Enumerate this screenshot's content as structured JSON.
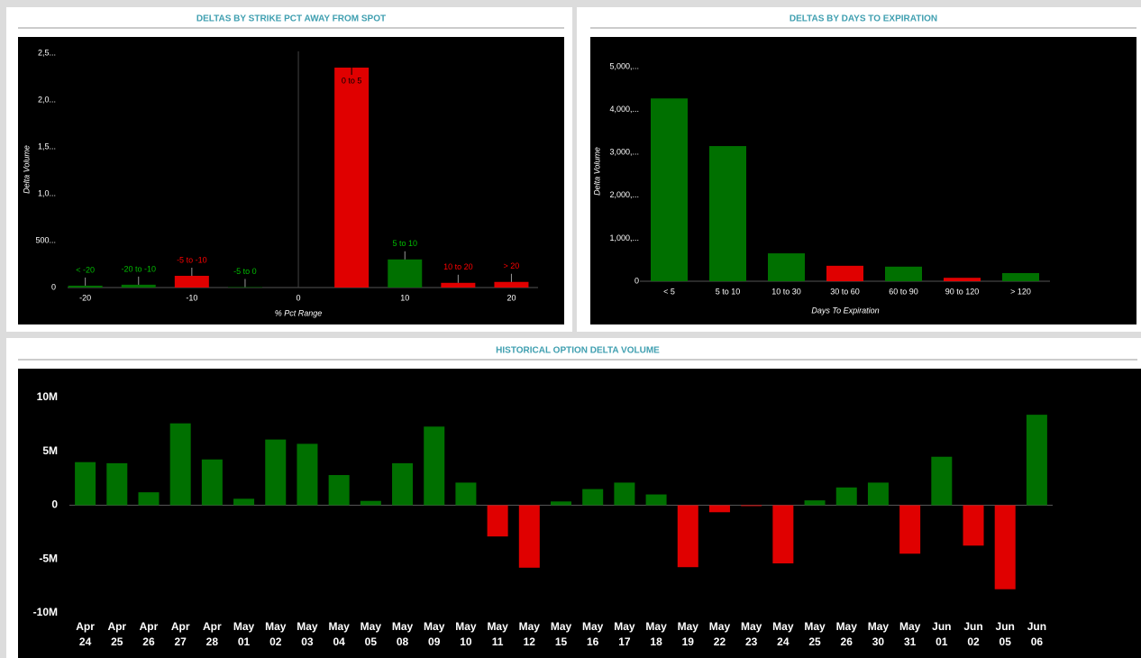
{
  "chart_data": [
    {
      "type": "bar",
      "title": "DELTAS BY STRIKE PCT AWAY FROM SPOT",
      "xlabel": "% Pct Range",
      "ylabel": "Delta Volume",
      "x": [
        -20,
        -15,
        -10,
        -5,
        5,
        10,
        15,
        20
      ],
      "categories": [
        "< -20",
        "-20 to -10",
        "-5 to -10",
        "-5 to 0",
        "0 to 5",
        "5 to 10",
        "10 to 20",
        "> 20"
      ],
      "values": [
        20,
        30,
        125,
        5,
        2346,
        300,
        50,
        60
      ],
      "colors": [
        "#007000",
        "#007000",
        "#e00000",
        "#007000",
        "#e00000",
        "#007000",
        "#e00000",
        "#e00000"
      ],
      "xlim": [
        -22,
        22.5
      ],
      "xticks": [
        -20,
        -10,
        0,
        10,
        20
      ],
      "ylim": [
        0,
        2500
      ],
      "yticks": [
        0,
        {
          "value": 500,
          "label": "500..."
        },
        {
          "value": 1000,
          "label": "1,0..."
        },
        {
          "value": 1500,
          "label": "1,5..."
        },
        {
          "value": 2000,
          "label": "2,0..."
        },
        {
          "value": 2500,
          "label": "2,5..."
        }
      ]
    },
    {
      "type": "bar",
      "title": "DELTAS BY DAYS TO EXPIRATION",
      "xlabel": "Days To Expiration",
      "ylabel": "Delta Volume",
      "categories": [
        "< 5",
        "5 to 10",
        "10 to 30",
        "30 to 60",
        "60 to 90",
        "90 to 120",
        "> 120"
      ],
      "values": [
        4260,
        3150,
        650,
        360,
        340,
        80,
        190
      ],
      "colors": [
        "#007000",
        "#007000",
        "#007000",
        "#e00000",
        "#007000",
        "#e00000",
        "#007000"
      ],
      "ylim": [
        0,
        5000
      ],
      "yticks": [
        0,
        {
          "value": 1000,
          "label": "1,000,..."
        },
        {
          "value": 2000,
          "label": "2,000,..."
        },
        {
          "value": 3000,
          "label": "3,000,..."
        },
        {
          "value": 4000,
          "label": "4,000,..."
        },
        {
          "value": 5000,
          "label": "5,000,..."
        }
      ]
    },
    {
      "type": "bar",
      "title": "HISTORICAL OPTION DELTA VOLUME",
      "categories": [
        "Apr 24",
        "Apr 25",
        "Apr 26",
        "Apr 27",
        "Apr 28",
        "May 01",
        "May 02",
        "May 03",
        "May 04",
        "May 05",
        "May 08",
        "May 09",
        "May 10",
        "May 11",
        "May 12",
        "May 15",
        "May 16",
        "May 17",
        "May 18",
        "May 19",
        "May 22",
        "May 23",
        "May 24",
        "May 25",
        "May 26",
        "May 30",
        "May 31",
        "Jun 01",
        "Jun 02",
        "Jun 05",
        "Jun 06"
      ],
      "values": [
        4000000,
        3900000,
        1200000,
        7600000,
        4250000,
        600000,
        6100000,
        5700000,
        2800000,
        400000,
        3900000,
        7300000,
        2100000,
        -2900000,
        -5800000,
        350000,
        1500000,
        2100000,
        1000000,
        -5750000,
        -650000,
        -80000,
        -5400000,
        450000,
        1650000,
        2100000,
        -4500000,
        4500000,
        -3750000,
        -7800000,
        8400000
      ],
      "color_positive": "#007000",
      "color_negative": "#e00000",
      "ylim": [
        -10000000,
        10000000
      ],
      "yticks": [
        {
          "value": -10000000,
          "label": "-10M"
        },
        {
          "value": -5000000,
          "label": "-5M"
        },
        0,
        {
          "value": 5000000,
          "label": "5M"
        },
        {
          "value": 10000000,
          "label": "10M"
        }
      ]
    }
  ]
}
